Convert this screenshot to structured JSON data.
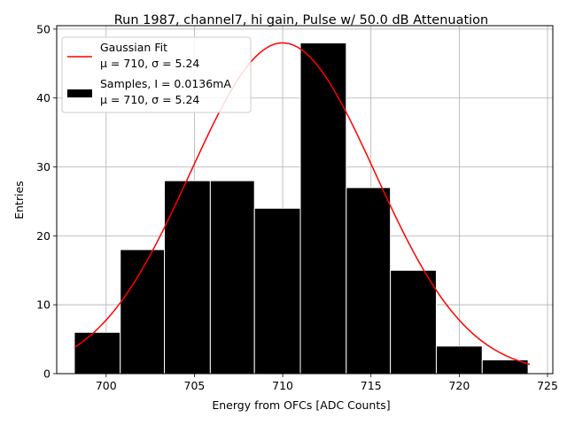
{
  "chart_data": {
    "type": "bar",
    "title": "Run 1987, channel7, hi gain, Pulse w/ 50.0 dB Attenuation",
    "xlabel": "Energy from OFCs [ADC Counts]",
    "ylabel": "Entries",
    "xlim": [
      697.2,
      725.3
    ],
    "ylim": [
      0,
      50.5
    ],
    "xticks": [
      700,
      705,
      710,
      715,
      720,
      725
    ],
    "yticks": [
      0,
      10,
      20,
      30,
      40,
      50
    ],
    "grid": true,
    "bins": [
      {
        "left": 698.2,
        "right": 700.8,
        "value": 6
      },
      {
        "left": 700.8,
        "right": 703.3,
        "value": 18
      },
      {
        "left": 703.3,
        "right": 705.9,
        "value": 28
      },
      {
        "left": 705.9,
        "right": 708.4,
        "value": 28
      },
      {
        "left": 708.4,
        "right": 711.0,
        "value": 24
      },
      {
        "left": 711.0,
        "right": 713.6,
        "value": 48
      },
      {
        "left": 713.6,
        "right": 716.1,
        "value": 27
      },
      {
        "left": 716.1,
        "right": 718.7,
        "value": 15
      },
      {
        "left": 718.7,
        "right": 721.3,
        "value": 4
      },
      {
        "left": 721.3,
        "right": 723.9,
        "value": 2
      }
    ],
    "fit": {
      "type": "gaussian",
      "mu": 710,
      "sigma": 5.24,
      "amplitude": 48,
      "x_range": [
        698.2,
        724.0
      ],
      "color": "#ff0000"
    },
    "bar_color": "#000000",
    "legend_position": "top-left",
    "legend": [
      {
        "kind": "line",
        "line1": "Gaussian Fit",
        "line2": "μ = 710, σ = 5.24"
      },
      {
        "kind": "patch",
        "line1": "Samples, I = 0.0136mA",
        "line2": "μ = 710, σ = 5.24"
      }
    ]
  }
}
